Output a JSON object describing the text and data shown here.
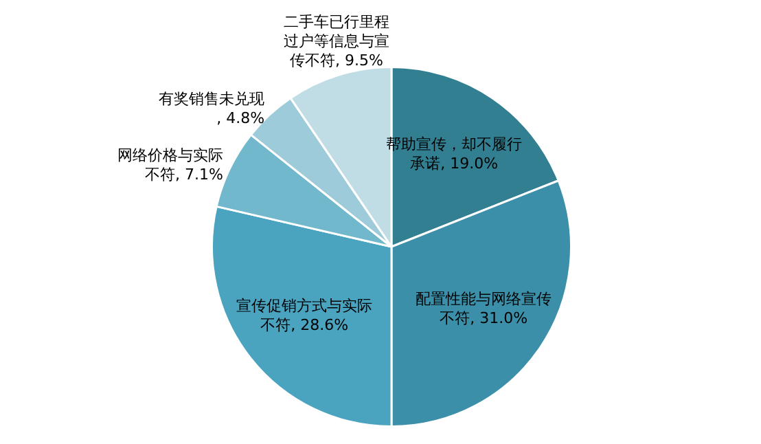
{
  "chart_data": {
    "type": "pie",
    "categories": [
      "帮助宣传，却不履行承诺",
      "配置性能与网络宣传不符",
      "宣传促销方式与实际不符",
      "网络价格与实际不符",
      "有奖销售未兑现",
      "二手车已行里程过户等信息与宣传不符"
    ],
    "values": [
      19.0,
      31.0,
      28.6,
      7.1,
      4.8,
      9.5
    ],
    "value_labels": [
      ", 19.0%",
      ", 31.0%",
      ", 28.6%",
      ", 7.1%",
      ", 4.8%",
      ", 9.5%"
    ],
    "colors": [
      "#327f91",
      "#3b8fa8",
      "#4aa3bf",
      "#72b8cd",
      "#9ecbd9",
      "#c0dde5"
    ],
    "legend": false
  }
}
